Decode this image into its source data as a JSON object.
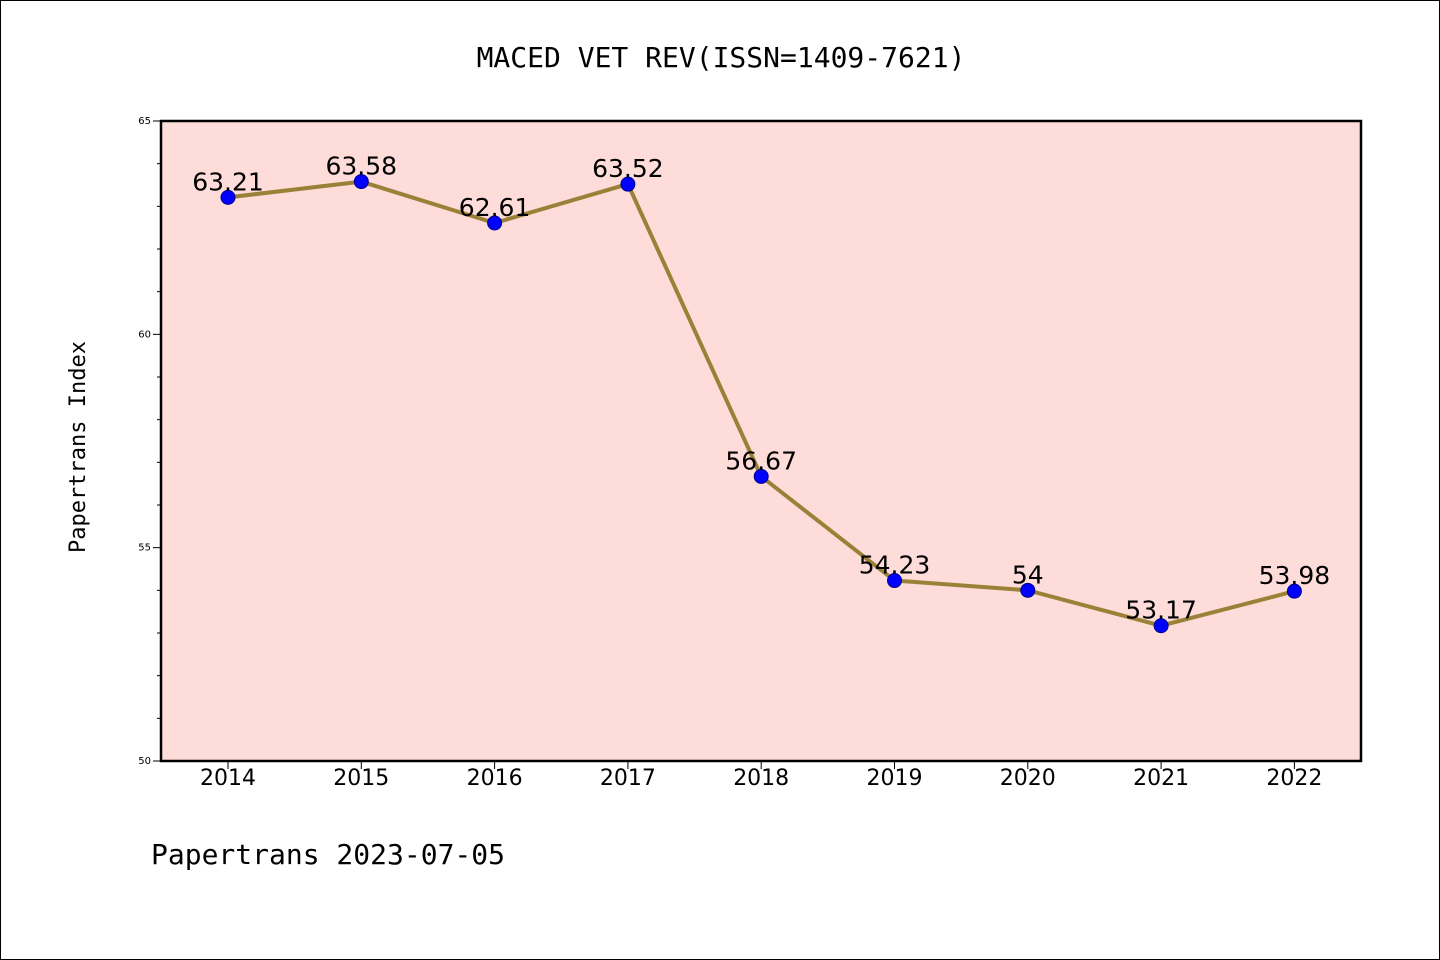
{
  "chart_data": {
    "type": "line",
    "title": "MACED VET REV(ISSN=1409-7621)",
    "xlabel": "",
    "ylabel": "Papertrans Index",
    "categories": [
      "2014",
      "2015",
      "2016",
      "2017",
      "2018",
      "2019",
      "2020",
      "2021",
      "2022"
    ],
    "series": [
      {
        "values": [
          63.21,
          63.58,
          62.61,
          63.52,
          56.67,
          54.23,
          54,
          53.17,
          53.98
        ],
        "labels": [
          "63.21",
          "63.58",
          "62.61",
          "63.52",
          "56.67",
          "54.23",
          "54",
          "53.17",
          "53.98"
        ]
      }
    ],
    "ylim": [
      50,
      65
    ],
    "yticks": [
      50,
      55,
      60,
      65
    ],
    "yminor_step": 1,
    "grid": false,
    "legend": "none",
    "colors": {
      "plot_background": "#fddcd9",
      "line": "#9a8137",
      "marker": "#0000ff",
      "marker_edge": "#00008b"
    }
  },
  "footer": "Papertrans 2023-07-05"
}
